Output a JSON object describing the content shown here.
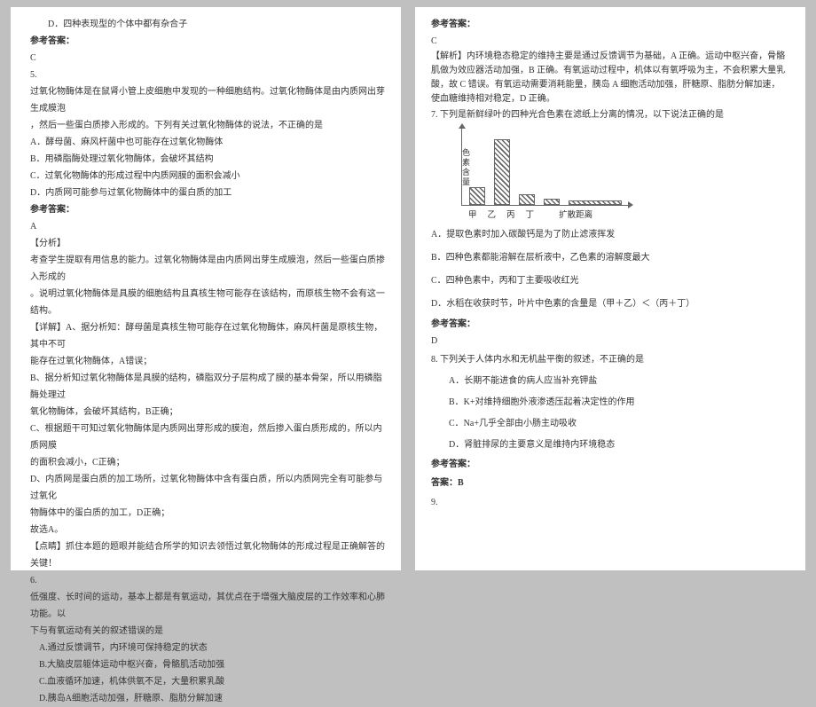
{
  "left": {
    "optD_q4": "D．四种表现型的个体中都有杂合子",
    "ansHdr": "参考答案：",
    "ans4": "C",
    "q5num": "5.",
    "q5l1": "过氧化物酶体是在鼠肾小管上皮细胞中发现的一种细胞结构。过氧化物酶体是由内质网出芽生成膜泡",
    "q5l2": "，然后一些蛋白质掺入形成的。下列有关过氧化物酶体的说法，不正确的是",
    "q5A": "A．酵母菌、麻风杆菌中也可能存在过氧化物酶体",
    "q5B": "B．用磷脂酶处理过氧化物酶体，会破坏其结构",
    "q5C": "C．过氧化物酶体的形成过程中内质网膜的面积会减小",
    "q5D": "D．内质网可能参与过氧化物酶体中的蛋白质的加工",
    "ans5": "A",
    "fenxi": "【分析】",
    "fx1": "考查学生提取有用信息的能力。过氧化物酶体是由内质网出芽生成膜泡，然后一些蛋白质掺入形成的",
    "fx2": "。说明过氧化物酶体是具膜的细胞结构且真核生物可能存在该结构，而原核生物不会有这一结构。",
    "xjA": "【详解】A、据分析知：酵母菌是真核生物可能存在过氧化物酶体，麻风杆菌是原核生物，其中不可",
    "xjA2": "能存在过氧化物酶体，A错误；",
    "xjB": "B、据分析知过氧化物酶体是具膜的结构，磷脂双分子层构成了膜的基本骨架，所以用磷脂酶处理过",
    "xjB2": "氧化物酶体，会破坏其结构，B正确；",
    "xjC": "C、根据题干可知过氧化物酶体是内质网出芽形成的膜泡，然后掺入蛋白质形成的，所以内质网膜",
    "xjC2": "的面积会减小，C正确；",
    "xjD": "D、内质网是蛋白质的加工场所，过氧化物酶体中含有蛋白质，所以内质网完全有可能参与过氧化",
    "xjD2": "物酶体中的蛋白质的加工，D正确；",
    "xuanA": "故选A。",
    "dianjing": "【点睛】抓住本题的题眼并能结合所学的知识去领悟过氧化物酶体的形成过程是正确解答的关键！",
    "q6num": "6.",
    "q6l1": "低强度、长时间的运动，基本上都是有氧运动，其优点在于增强大脑皮层的工作效率和心肺功能。以",
    "q6l2": "下与有氧运动有关的叙述错误的是",
    "q6A": "A.通过反馈调节，内环境可保持稳定的状态",
    "q6B": "B.大脑皮层躯体运动中枢兴奋，骨骼肌活动加强",
    "q6C": "C.血液循环加速，机体供氧不足，大量积累乳酸",
    "q6D": "D.胰岛A细胞活动加强，肝糖原、脂肪分解加速"
  },
  "right": {
    "ansHdr": "参考答案：",
    "ans6": "C",
    "jiexi": "【解析】内环境稳态稳定的维持主要是通过反馈调节为基础，A 正确。运动中枢兴奋，骨骼肌做为效应器活动加强，B 正确。有氧运动过程中，机体以有氧呼吸为主，不会积累大量乳酸，故 C 错误。有氧运动需要消耗能量，胰岛 A 细胞活动加强，肝糖原、脂肪分解加速，使血糖维持相对稳定，D 正确。",
    "q7": "7. 下列是新鲜绿叶的四种光合色素在滤纸上分离的情况，以下说法正确的是",
    "chart": {
      "yLabel": "色素含量",
      "bars": [
        20,
        74,
        12,
        7,
        5
      ],
      "barColors": [
        "#666",
        "#666",
        "#666",
        "#666",
        "#666"
      ],
      "xLabels": [
        "甲",
        "乙",
        "丙",
        "丁",
        "扩散距离"
      ]
    },
    "q7A": "A．提取色素时加入碳酸钙是为了防止滤液挥发",
    "q7B": "B．四种色素都能溶解在层析液中，乙色素的溶解度最大",
    "q7C": "C．四种色素中，丙和丁主要吸收红光",
    "q7D": "D．水稻在收获时节，叶片中色素的含量是（甲＋乙）＜（丙＋丁）",
    "ans7": "D",
    "q8": "8. 下列关于人体内水和无机盐平衡的叙述，不正确的是",
    "q8A": "A．长期不能进食的病人应当补充钾盐",
    "q8B": "B．K+对维持细胞外液渗透压起着决定性的作用",
    "q8C": "C．Na+几乎全部由小肠主动吸收",
    "q8D": "D．肾脏排尿的主要意义是维持内环境稳态",
    "ans8lbl": "答案：B",
    "q9": "9."
  }
}
